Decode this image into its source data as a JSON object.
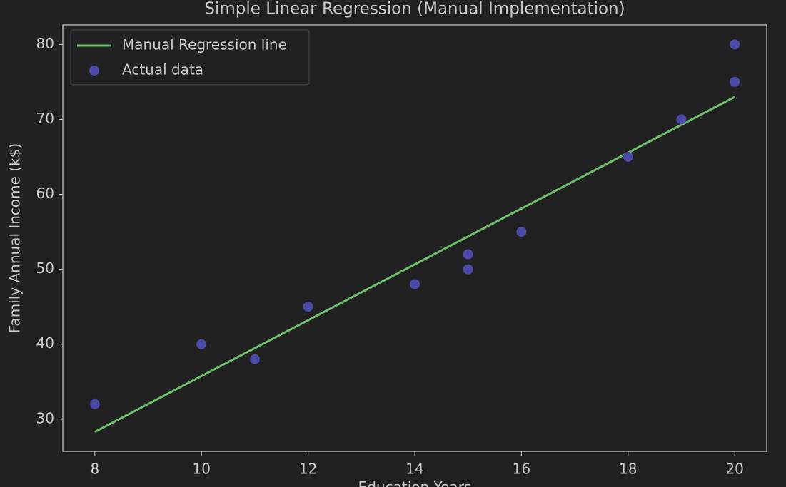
{
  "chart_data": {
    "type": "scatter",
    "title": "Simple Linear Regression (Manual Implementation)",
    "x_label": "Education Years",
    "y_label": "Family Annual Income (k$)",
    "series": [
      {
        "name": "Manual Regression line",
        "type": "line",
        "color": "#6dbf6a",
        "x": [
          8,
          20
        ],
        "values": [
          28.3,
          73.0
        ]
      },
      {
        "name": "Actual data",
        "type": "scatter",
        "color": "#4b4aa8",
        "x": [
          8,
          10,
          11,
          12,
          14,
          15,
          15,
          16,
          18,
          19,
          20,
          20
        ],
        "values": [
          32,
          40,
          38,
          45,
          48,
          52,
          50,
          55,
          65,
          70,
          75,
          80
        ]
      }
    ],
    "xlim": [
      7.4,
      20.6
    ],
    "ylim": [
      25.7,
      82.6
    ],
    "xticks": [
      8,
      10,
      12,
      14,
      16,
      18,
      20
    ],
    "yticks": [
      30,
      40,
      50,
      60,
      70,
      80
    ],
    "grid": false,
    "legend": "upper left"
  }
}
